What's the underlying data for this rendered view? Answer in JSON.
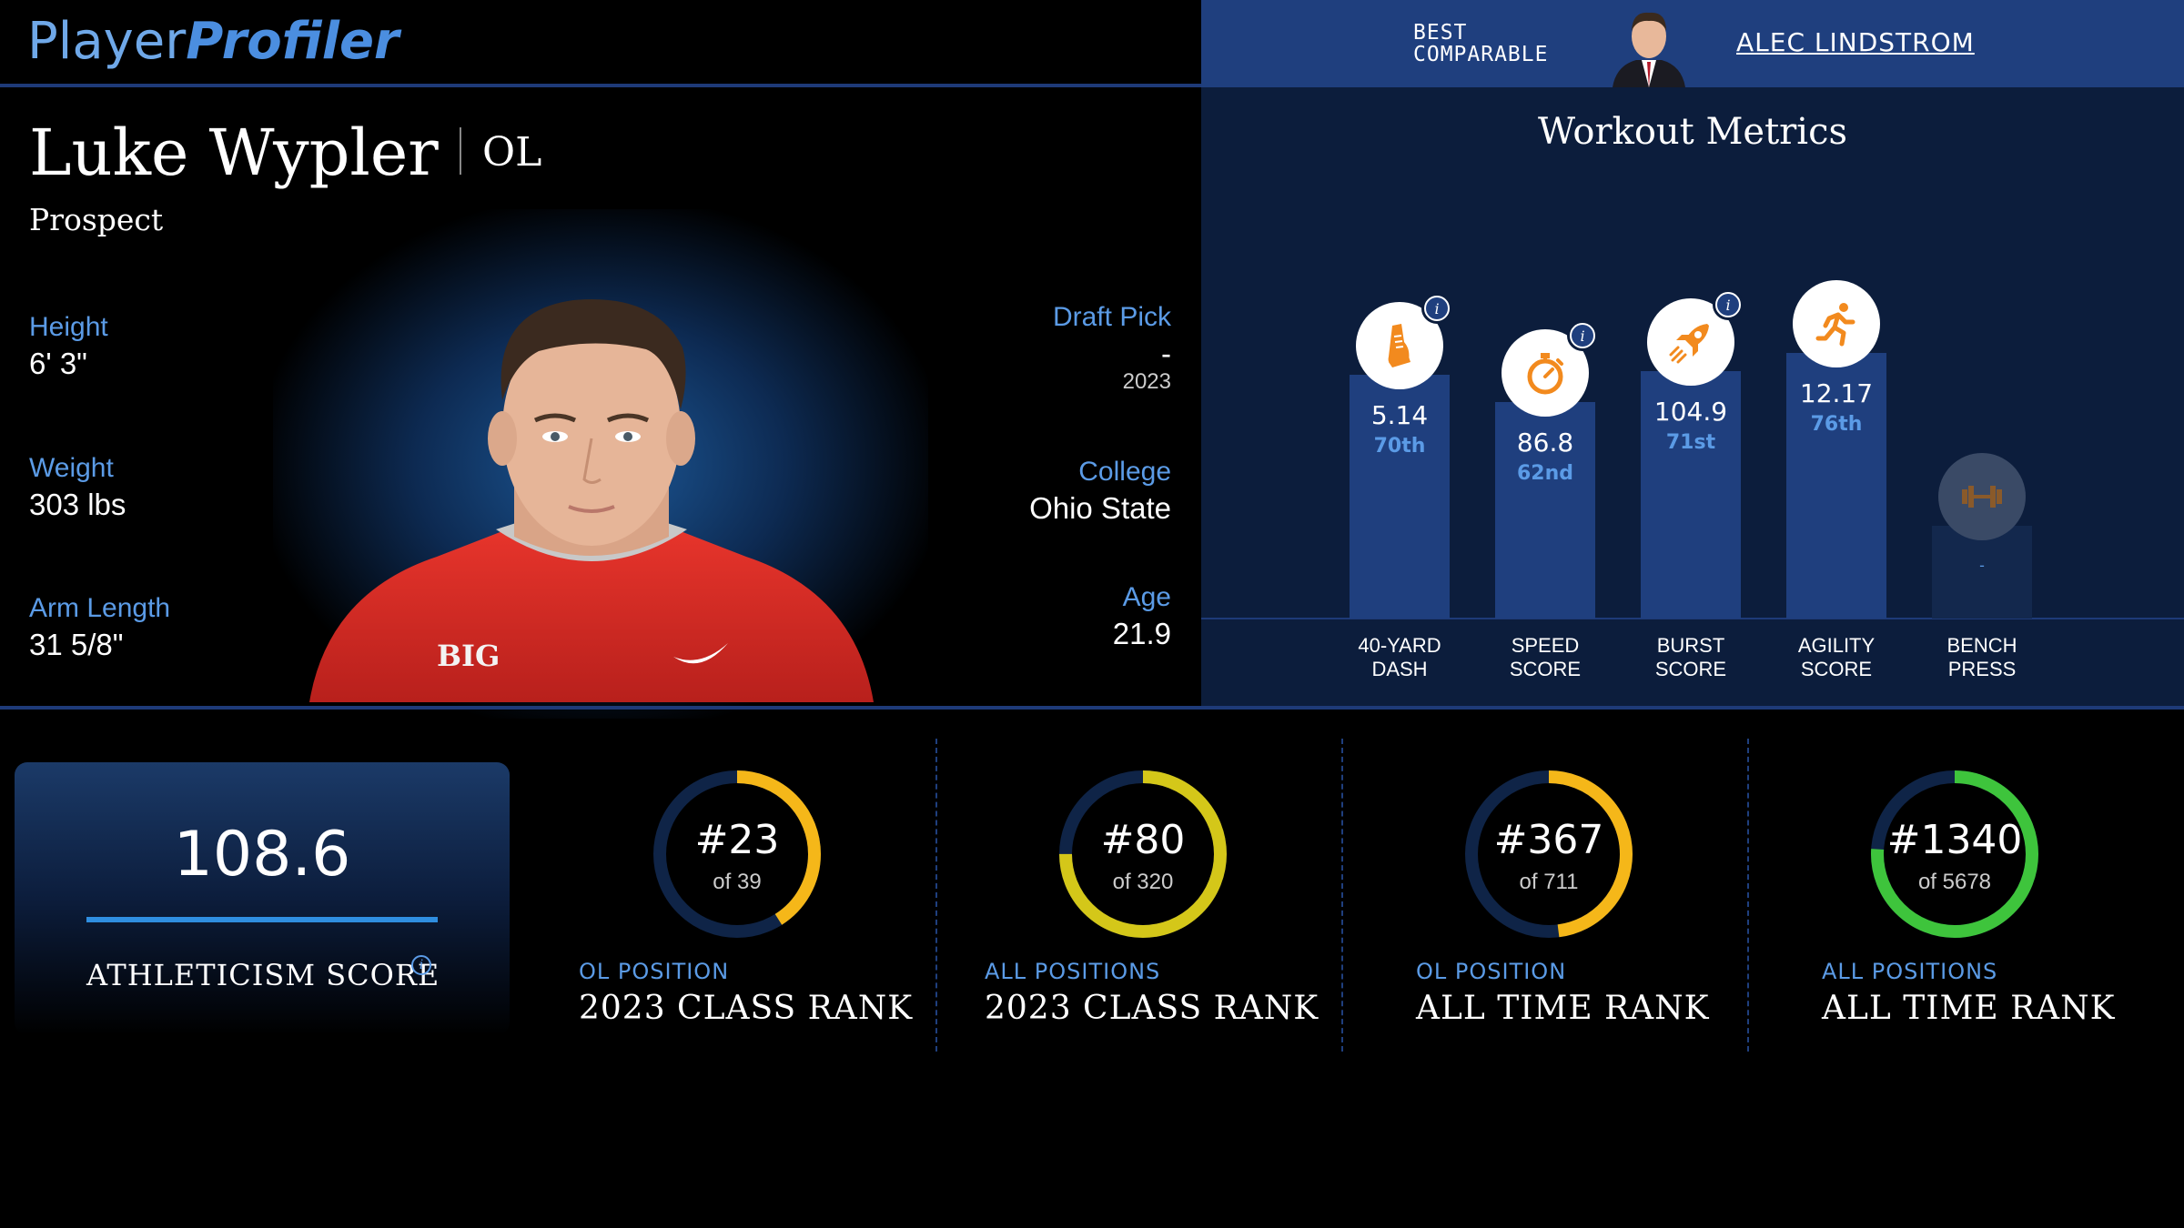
{
  "brand": {
    "logo_part1": "Player",
    "logo_part2": "Profiler"
  },
  "comparable": {
    "label_line1": "BEST",
    "label_line2": "COMPARABLE",
    "name": "ALEC LINDSTROM"
  },
  "player": {
    "name": "Luke Wypler",
    "position": "OL",
    "status": "Prospect"
  },
  "stats_left": [
    {
      "label": "Height",
      "value": "6' 3\""
    },
    {
      "label": "Weight",
      "value": "303 lbs"
    },
    {
      "label": "Arm Length",
      "value": "31 5/8\""
    }
  ],
  "draft": {
    "label": "Draft Pick",
    "value": "-",
    "year": "2023"
  },
  "college": {
    "label": "College",
    "value": "Ohio State"
  },
  "age": {
    "label": "Age",
    "value": "21.9"
  },
  "jersey": {
    "logo": "BIG"
  },
  "workout": {
    "title": "Workout Metrics",
    "metrics": [
      {
        "label_line1": "40-YARD",
        "label_line2": "DASH",
        "value": "5.14",
        "percentile": "70th",
        "percentile_num": 70,
        "icon": "running-shoe-icon"
      },
      {
        "label_line1": "SPEED",
        "label_line2": "SCORE",
        "value": "86.8",
        "percentile": "62nd",
        "percentile_num": 62,
        "icon": "stopwatch-icon"
      },
      {
        "label_line1": "BURST",
        "label_line2": "SCORE",
        "value": "104.9",
        "percentile": "71st",
        "percentile_num": 71,
        "icon": "rocket-icon"
      },
      {
        "label_line1": "AGILITY",
        "label_line2": "SCORE",
        "value": "12.17",
        "percentile": "76th",
        "percentile_num": 76,
        "icon": "runner-icon"
      },
      {
        "label_line1": "BENCH",
        "label_line2": "PRESS",
        "value": "-",
        "percentile": "",
        "percentile_num": 25,
        "icon": "dumbbell-icon"
      }
    ]
  },
  "athleticism": {
    "score": "108.6",
    "label": "ATHLETICISM SCORE"
  },
  "ranks": [
    {
      "rank": "#23",
      "of": "of 39",
      "scope": "OL POSITION",
      "title": "2023 CLASS RANK",
      "fraction": 0.41,
      "color": "#f5b719"
    },
    {
      "rank": "#80",
      "of": "of 320",
      "scope": "ALL POSITIONS",
      "title": "2023 CLASS RANK",
      "fraction": 0.75,
      "color": "#d4c719"
    },
    {
      "rank": "#367",
      "of": "of 711",
      "scope": "OL POSITION",
      "title": "ALL TIME RANK",
      "fraction": 0.48,
      "color": "#f5b719"
    },
    {
      "rank": "#1340",
      "of": "of 5678",
      "scope": "ALL POSITIONS",
      "title": "ALL TIME RANK",
      "fraction": 0.76,
      "color": "#3ec43c"
    }
  ],
  "colors": {
    "accent": "#5b9be6",
    "bar": "#1f3f7e",
    "panel": "#0c1d3c",
    "orange": "#f28a1e"
  }
}
